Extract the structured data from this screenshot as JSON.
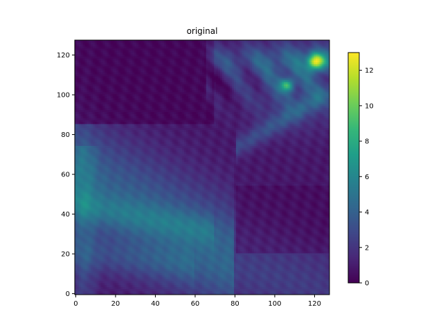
{
  "chart_data": {
    "type": "heatmap",
    "title": "original",
    "xlabel": "",
    "ylabel": "",
    "xlim": [
      0,
      127
    ],
    "ylim": [
      0,
      127
    ],
    "x_ticks": [
      0,
      20,
      40,
      60,
      80,
      100,
      120
    ],
    "y_ticks": [
      0,
      20,
      40,
      60,
      80,
      100,
      120
    ],
    "colormap": "viridis",
    "colorbar": {
      "range": [
        0,
        13
      ],
      "ticks": [
        0,
        2,
        4,
        6,
        8,
        10,
        12
      ]
    },
    "grid_resolution": [
      128,
      128
    ],
    "regions": [
      {
        "description": "dark upper-left area",
        "x_range": [
          0,
          70
        ],
        "y_range": [
          85,
          127
        ],
        "approx_value": 0.3
      },
      {
        "description": "bright patch top-right",
        "x_center": 120,
        "y_center": 117,
        "approx_value": 12.5
      },
      {
        "description": "secondary bright patch",
        "x_center": 106,
        "y_center": 105,
        "approx_value": 9
      },
      {
        "description": "moderate diagonal band lower-left",
        "approx_value": 4.5
      },
      {
        "description": "dark band lower-right",
        "x_range": [
          80,
          127
        ],
        "y_range": [
          20,
          55
        ],
        "approx_value": 0.6
      }
    ]
  },
  "colors": {
    "viridis": [
      "#440154",
      "#482878",
      "#3e4989",
      "#31688e",
      "#26828e",
      "#1f9e89",
      "#35b779",
      "#6ece58",
      "#b5de2b",
      "#fde725"
    ]
  }
}
